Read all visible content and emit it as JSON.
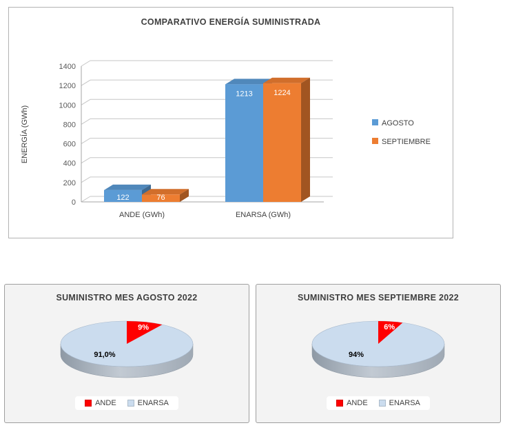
{
  "chart_data": [
    {
      "type": "bar",
      "style": "3d-clustered-column",
      "title": "COMPARATIVO ENERGÍA SUMINISTRADA",
      "categories": [
        "ANDE (GWh)",
        "ENARSA (GWh)"
      ],
      "series": [
        {
          "name": "AGOSTO",
          "color": "#5B9BD5",
          "values": [
            122,
            1213
          ]
        },
        {
          "name": "SEPTIEMBRE",
          "color": "#ED7D31",
          "values": [
            76,
            1224
          ]
        }
      ],
      "data_labels": {
        "AGOSTO": [
          "122",
          "1213"
        ],
        "SEPTIEMBRE": [
          "76",
          "1224"
        ]
      },
      "xlabel": "",
      "ylabel": "ENERGÍA (GWh)",
      "ylim": [
        0,
        1400
      ],
      "ytick_step": 200,
      "yticks": [
        0,
        200,
        400,
        600,
        800,
        1000,
        1200,
        1400
      ],
      "grid": true,
      "legend_position": "right"
    },
    {
      "type": "pie",
      "style": "3d",
      "title": "SUMINISTRO MES AGOSTO 2022",
      "labels": [
        "ANDE",
        "ENARSA"
      ],
      "values": [
        9,
        91
      ],
      "slice_labels": [
        "9%",
        "91,0%"
      ],
      "colors": [
        "#FF0000",
        "#CBDCEE"
      ],
      "legend_position": "bottom"
    },
    {
      "type": "pie",
      "style": "3d",
      "title": "SUMINISTRO MES SEPTIEMBRE 2022",
      "labels": [
        "ANDE",
        "ENARSA"
      ],
      "values": [
        6,
        94
      ],
      "slice_labels": [
        "6%",
        "94%"
      ],
      "colors": [
        "#FF0000",
        "#CBDCEE"
      ],
      "legend_position": "bottom"
    }
  ]
}
